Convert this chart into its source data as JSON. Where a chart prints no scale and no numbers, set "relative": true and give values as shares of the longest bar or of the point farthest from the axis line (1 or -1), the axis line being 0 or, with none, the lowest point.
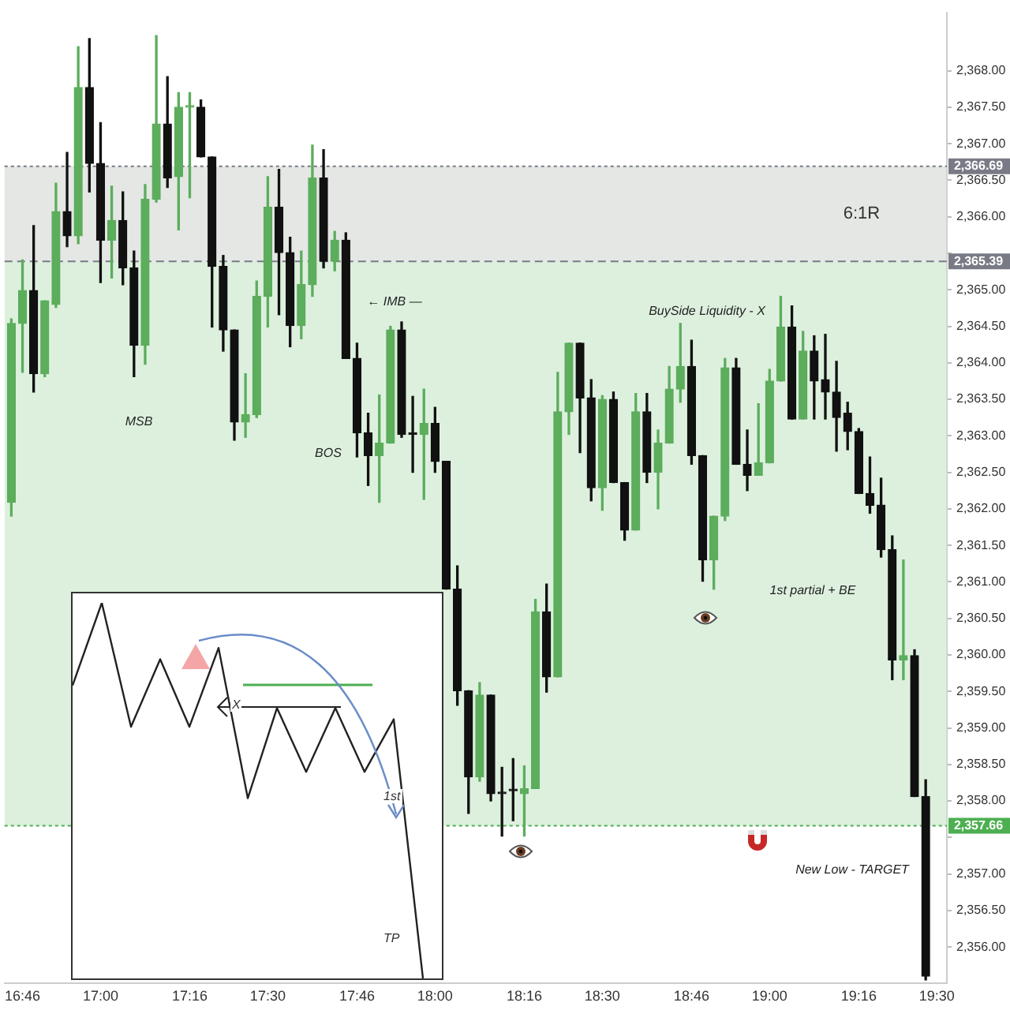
{
  "chart_data": [
    {
      "type": "candlestick",
      "x": [
        16.7333,
        16.7667,
        16.8,
        16.8333,
        16.8667,
        16.9,
        16.9333,
        16.9667,
        17,
        17.0333,
        17.0667,
        17.1,
        17.1333,
        17.1667,
        17.2,
        17.2333,
        17.2667,
        17.3,
        17.3333,
        17.3667,
        17.4,
        17.4333,
        17.4667,
        17.5,
        17.5333,
        17.5667,
        17.6,
        17.6333,
        17.6667,
        17.7,
        17.7333,
        17.7667,
        17.8,
        17.8333,
        17.8667,
        17.9,
        17.9333,
        17.9667,
        18,
        18.0333,
        18.0667,
        18.1,
        18.1333,
        18.1667,
        18.2,
        18.2333,
        18.2667,
        18.3,
        18.3333,
        18.3667,
        18.4,
        18.4333,
        18.4667,
        18.5,
        18.5333,
        18.5667,
        18.6,
        18.6333,
        18.6667,
        18.7,
        18.7333,
        18.7667,
        18.8,
        18.8333,
        18.8667,
        18.9,
        18.9333,
        18.9667,
        19,
        19.0333,
        19.0667,
        19.1,
        19.1333,
        19.1667,
        19.2,
        19.2333,
        19.2667,
        19.3,
        19.3333,
        19.3667,
        19.4,
        19.4333,
        19.4667
      ],
      "ohlc": [
        [
          2362.09,
          2364.6,
          2361.9,
          2364.54
        ],
        [
          2364.54,
          2365.41,
          2363.87,
          2364.99
        ],
        [
          2364.99,
          2365.88,
          2363.6,
          2363.85
        ],
        [
          2363.85,
          2364.85,
          2363.81,
          2364.85
        ],
        [
          2364.8,
          2366.46,
          2364.76,
          2366.07
        ],
        [
          2366.07,
          2366.88,
          2365.59,
          2365.74
        ],
        [
          2365.74,
          2368.33,
          2365.63,
          2367.77
        ],
        [
          2367.77,
          2368.44,
          2366.34,
          2366.73
        ],
        [
          2366.73,
          2367.29,
          2365.1,
          2365.68
        ],
        [
          2365.68,
          2366.42,
          2365.16,
          2365.95
        ],
        [
          2365.95,
          2366.34,
          2365.07,
          2365.3
        ],
        [
          2365.3,
          2365.53,
          2363.81,
          2364.24
        ],
        [
          2364.24,
          2366.44,
          2363.98,
          2366.24
        ],
        [
          2366.24,
          2368.48,
          2366.2,
          2367.27
        ],
        [
          2367.27,
          2367.92,
          2366.4,
          2366.53
        ],
        [
          2366.55,
          2367.7,
          2365.82,
          2367.5
        ],
        [
          2367.5,
          2367.7,
          2366.26,
          2367.5
        ],
        [
          2367.5,
          2367.6,
          2366.82,
          2366.82
        ],
        [
          2366.82,
          2366.82,
          2364.49,
          2365.32
        ],
        [
          2365.32,
          2365.47,
          2364.16,
          2364.45
        ],
        [
          2364.45,
          2364.45,
          2362.94,
          2363.19
        ],
        [
          2363.19,
          2363.85,
          2362.98,
          2363.29
        ],
        [
          2363.29,
          2365.12,
          2363.25,
          2364.91
        ],
        [
          2364.91,
          2366.55,
          2364.49,
          2366.13
        ],
        [
          2366.13,
          2366.65,
          2364.66,
          2365.51
        ],
        [
          2365.51,
          2365.72,
          2364.22,
          2364.51
        ],
        [
          2364.51,
          2365.53,
          2364.33,
          2365.07
        ],
        [
          2365.07,
          2366.98,
          2364.91,
          2366.53
        ],
        [
          2366.53,
          2366.92,
          2365.3,
          2365.39
        ],
        [
          2365.39,
          2365.8,
          2365.26,
          2365.68
        ],
        [
          2365.68,
          2365.78,
          2364.06,
          2364.06
        ],
        [
          2364.06,
          2364.27,
          2362.71,
          2363.04
        ],
        [
          2363.04,
          2363.31,
          2362.32,
          2362.73
        ],
        [
          2362.73,
          2363.56,
          2362.09,
          2362.9
        ],
        [
          2362.9,
          2364.5,
          2362.9,
          2364.45
        ],
        [
          2364.45,
          2364.56,
          2362.98,
          2363.02
        ],
        [
          2363.02,
          2363.54,
          2362.5,
          2363.02
        ],
        [
          2363.02,
          2363.64,
          2362.13,
          2363.17
        ],
        [
          2363.17,
          2363.39,
          2362.5,
          2362.65
        ],
        [
          2362.65,
          2362.65,
          2360.9,
          2360.9
        ],
        [
          2360.9,
          2361.22,
          2359.31,
          2359.51
        ],
        [
          2359.51,
          2359.51,
          2357.83,
          2358.33
        ],
        [
          2358.33,
          2359.62,
          2358.27,
          2359.45
        ],
        [
          2359.45,
          2359.45,
          2358.0,
          2358.1
        ],
        [
          2358.1,
          2358.46,
          2357.52,
          2358.1
        ],
        [
          2358.14,
          2358.58,
          2357.73,
          2358.14
        ],
        [
          2358.1,
          2358.48,
          2357.52,
          2358.17
        ],
        [
          2358.17,
          2360.76,
          2358.17,
          2360.59
        ],
        [
          2360.59,
          2360.97,
          2359.49,
          2359.7
        ],
        [
          2359.7,
          2363.87,
          2359.7,
          2363.33
        ],
        [
          2363.33,
          2364.27,
          2363.02,
          2364.27
        ],
        [
          2364.27,
          2364.27,
          2362.77,
          2363.52
        ],
        [
          2363.52,
          2363.77,
          2362.11,
          2362.29
        ],
        [
          2362.29,
          2363.55,
          2361.98,
          2363.5
        ],
        [
          2363.5,
          2363.6,
          2362.36,
          2362.36
        ],
        [
          2362.36,
          2362.36,
          2361.57,
          2361.71
        ],
        [
          2361.71,
          2363.58,
          2361.71,
          2363.33
        ],
        [
          2363.33,
          2363.58,
          2362.36,
          2362.5
        ],
        [
          2362.5,
          2363.08,
          2362.0,
          2362.9
        ],
        [
          2362.9,
          2363.95,
          2362.9,
          2363.64
        ],
        [
          2363.64,
          2364.54,
          2363.46,
          2363.95
        ],
        [
          2363.95,
          2364.31,
          2362.61,
          2362.73
        ],
        [
          2362.73,
          2362.73,
          2361.01,
          2361.3
        ],
        [
          2361.3,
          2361.9,
          2360.9,
          2361.9
        ],
        [
          2361.9,
          2364.06,
          2361.84,
          2363.93
        ],
        [
          2363.93,
          2364.06,
          2362.61,
          2362.61
        ],
        [
          2362.61,
          2363.08,
          2362.25,
          2362.46
        ],
        [
          2362.46,
          2363.44,
          2362.46,
          2362.63
        ],
        [
          2362.63,
          2363.91,
          2362.63,
          2363.75
        ],
        [
          2363.75,
          2364.91,
          2363.75,
          2364.49
        ],
        [
          2364.49,
          2364.78,
          2363.23,
          2363.23
        ],
        [
          2363.23,
          2364.43,
          2363.23,
          2364.16
        ],
        [
          2364.16,
          2364.37,
          2363.23,
          2363.75
        ],
        [
          2363.77,
          2364.39,
          2363.23,
          2363.6
        ],
        [
          2363.6,
          2364.02,
          2362.79,
          2363.25
        ],
        [
          2363.31,
          2363.46,
          2362.81,
          2363.06
        ],
        [
          2363.06,
          2363.1,
          2362.21,
          2362.21
        ],
        [
          2362.21,
          2362.71,
          2361.94,
          2362.05
        ],
        [
          2362.05,
          2362.42,
          2361.34,
          2361.44
        ],
        [
          2361.44,
          2361.63,
          2359.66,
          2359.93
        ],
        [
          2359.93,
          2361.3,
          2359.66,
          2359.99
        ],
        [
          2359.99,
          2360.07,
          2358.06,
          2358.06
        ],
        [
          2358.06,
          2358.29,
          2355.55,
          2355.6
        ]
      ],
      "colors": [
        "#5cad5c",
        "#5cad5c",
        "#111111",
        "#5cad5c",
        "#5cad5c",
        "#111111",
        "#5cad5c",
        "#111111",
        "#111111",
        "#5cad5c",
        "#111111",
        "#111111",
        "#5cad5c",
        "#5cad5c",
        "#111111",
        "#5cad5c",
        "#5cad5c",
        "#111111",
        "#111111",
        "#111111",
        "#111111",
        "#5cad5c",
        "#5cad5c",
        "#5cad5c",
        "#111111",
        "#111111",
        "#5cad5c",
        "#5cad5c",
        "#111111",
        "#5cad5c",
        "#111111",
        "#111111",
        "#111111",
        "#5cad5c",
        "#5cad5c",
        "#111111",
        "#111111",
        "#5cad5c",
        "#111111",
        "#111111",
        "#111111",
        "#111111",
        "#5cad5c",
        "#111111",
        "#111111",
        "#111111",
        "#5cad5c",
        "#5cad5c",
        "#111111",
        "#5cad5c",
        "#5cad5c",
        "#111111",
        "#111111",
        "#5cad5c",
        "#111111",
        "#111111",
        "#5cad5c",
        "#111111",
        "#5cad5c",
        "#5cad5c",
        "#5cad5c",
        "#111111",
        "#111111",
        "#5cad5c",
        "#5cad5c",
        "#111111",
        "#111111",
        "#5cad5c",
        "#5cad5c",
        "#5cad5c",
        "#111111",
        "#5cad5c",
        "#111111",
        "#111111",
        "#111111",
        "#111111",
        "#111111",
        "#111111",
        "#111111",
        "#111111",
        "#5cad5c",
        "#111111",
        "#111111"
      ],
      "xlim": [
        16.713,
        19.53
      ],
      "xticks": [
        {
          "value": 16.7667,
          "label": "16:46"
        },
        {
          "value": 17,
          "label": "17:00"
        },
        {
          "value": 17.2667,
          "label": "17:16"
        },
        {
          "value": 17.5,
          "label": "17:30"
        },
        {
          "value": 17.7667,
          "label": "17:46"
        },
        {
          "value": 18,
          "label": "18:00"
        },
        {
          "value": 18.2667,
          "label": "18:16"
        },
        {
          "value": 18.5,
          "label": "18:30"
        },
        {
          "value": 18.7667,
          "label": "18:46"
        },
        {
          "value": 19,
          "label": "19:00"
        },
        {
          "value": 19.2667,
          "label": "19:16"
        },
        {
          "value": 19.5,
          "label": "19:30"
        }
      ],
      "ylim": [
        2355.5,
        2368.8
      ],
      "yticks": [
        {
          "value": 2356,
          "label": "2,356.00"
        },
        {
          "value": 2356.5,
          "label": "2,356.50"
        },
        {
          "value": 2357,
          "label": "2,357.00"
        },
        {
          "value": 2357.5,
          "label": null
        },
        {
          "value": 2358,
          "label": "2,358.00"
        },
        {
          "value": 2358.5,
          "label": "2,358.50"
        },
        {
          "value": 2359,
          "label": "2,359.00"
        },
        {
          "value": 2359.5,
          "label": "2,359.50"
        },
        {
          "value": 2360,
          "label": "2,360.00"
        },
        {
          "value": 2360.5,
          "label": "2,360.50"
        },
        {
          "value": 2361,
          "label": "2,361.00"
        },
        {
          "value": 2361.5,
          "label": "2,361.50"
        },
        {
          "value": 2362,
          "label": "2,362.00"
        },
        {
          "value": 2362.5,
          "label": "2,362.50"
        },
        {
          "value": 2363,
          "label": "2,363.00"
        },
        {
          "value": 2363.5,
          "label": "2,363.50"
        },
        {
          "value": 2364,
          "label": "2,364.00"
        },
        {
          "value": 2364.5,
          "label": "2,364.50"
        },
        {
          "value": 2365,
          "label": "2,365.00"
        },
        {
          "value": 2365.5,
          "label": null
        },
        {
          "value": 2366,
          "label": "2,366.00"
        },
        {
          "value": 2366.5,
          "label": "2,366.50"
        },
        {
          "value": 2367,
          "label": "2,367.00"
        },
        {
          "value": 2367.5,
          "label": "2,367.50"
        },
        {
          "value": 2368,
          "label": "2,368.00"
        }
      ],
      "bands": [
        {
          "axis": "y",
          "from": 2365.39,
          "to": 2366.69,
          "label": "6:1R",
          "color": "#d9ddd9"
        },
        {
          "axis": "y",
          "from": 2357.66,
          "to": 2365.39,
          "color": "#cfead0"
        }
      ],
      "ref_lines": [
        {
          "axis": "y",
          "value": 2366.69,
          "label": "2,366.69",
          "color": "#787b86",
          "line_style": "dotted"
        },
        {
          "axis": "y",
          "value": 2365.39,
          "label": "2,365.39",
          "color": "#787b86",
          "line_style": "dashed"
        },
        {
          "axis": "y",
          "value": 2357.66,
          "label": "2,357.66",
          "color": "#4caf50",
          "line_style": "dotted"
        }
      ],
      "annotations": [
        "MSB",
        "BOS",
        "← IMB —",
        "BuySide Liquidity - X",
        "1st partial + BE",
        "New Low - TARGET"
      ],
      "grid": false,
      "legend": false
    },
    {
      "type": "line",
      "relative": true,
      "categories": [
        null,
        null,
        null,
        null,
        null,
        null,
        null,
        null,
        null,
        null,
        null,
        null,
        null
      ],
      "values": [
        0.78,
        1,
        0.67,
        0.85,
        0.67,
        0.88,
        0.48,
        0.72,
        0.55,
        0.72,
        0.55,
        0.69,
        0
      ],
      "color": "#222222",
      "marker": "none",
      "annotations": [
        "X",
        "1st",
        "TP"
      ]
    }
  ]
}
